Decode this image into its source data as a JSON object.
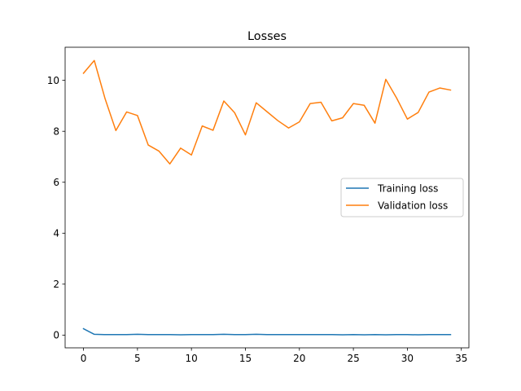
{
  "chart_data": {
    "type": "line",
    "title": "Losses",
    "xlabel": "",
    "ylabel": "",
    "xlim": [
      -1.7,
      35.7
    ],
    "ylim": [
      -0.5,
      11.3
    ],
    "xticks": [
      0,
      5,
      10,
      15,
      20,
      25,
      30,
      35
    ],
    "yticks": [
      0,
      2,
      4,
      6,
      8,
      10
    ],
    "grid": false,
    "legend_position": "center-right",
    "x": [
      0,
      1,
      2,
      3,
      4,
      5,
      6,
      7,
      8,
      9,
      10,
      11,
      12,
      13,
      14,
      15,
      16,
      17,
      18,
      19,
      20,
      21,
      22,
      23,
      24,
      25,
      26,
      27,
      28,
      29,
      30,
      31,
      32,
      33,
      34
    ],
    "series": [
      {
        "name": "Training loss",
        "color": "#1f77b4",
        "values": [
          0.25,
          0.03,
          0.02,
          0.02,
          0.02,
          0.03,
          0.02,
          0.02,
          0.02,
          0.01,
          0.02,
          0.02,
          0.02,
          0.03,
          0.02,
          0.02,
          0.03,
          0.02,
          0.02,
          0.02,
          0.02,
          0.02,
          0.02,
          0.02,
          0.01,
          0.02,
          0.01,
          0.02,
          0.01,
          0.02,
          0.02,
          0.01,
          0.02,
          0.02,
          0.02
        ]
      },
      {
        "name": "Validation loss",
        "color": "#ff7f0e",
        "values": [
          10.28,
          10.78,
          9.28,
          8.03,
          8.76,
          8.62,
          7.46,
          7.22,
          6.72,
          7.34,
          7.07,
          8.21,
          8.04,
          9.19,
          8.73,
          7.86,
          9.12,
          8.77,
          8.42,
          8.13,
          8.37,
          9.09,
          9.14,
          8.41,
          8.53,
          9.09,
          9.02,
          8.32,
          10.04,
          9.31,
          8.48,
          8.74,
          9.54,
          9.7,
          9.62
        ]
      }
    ]
  }
}
